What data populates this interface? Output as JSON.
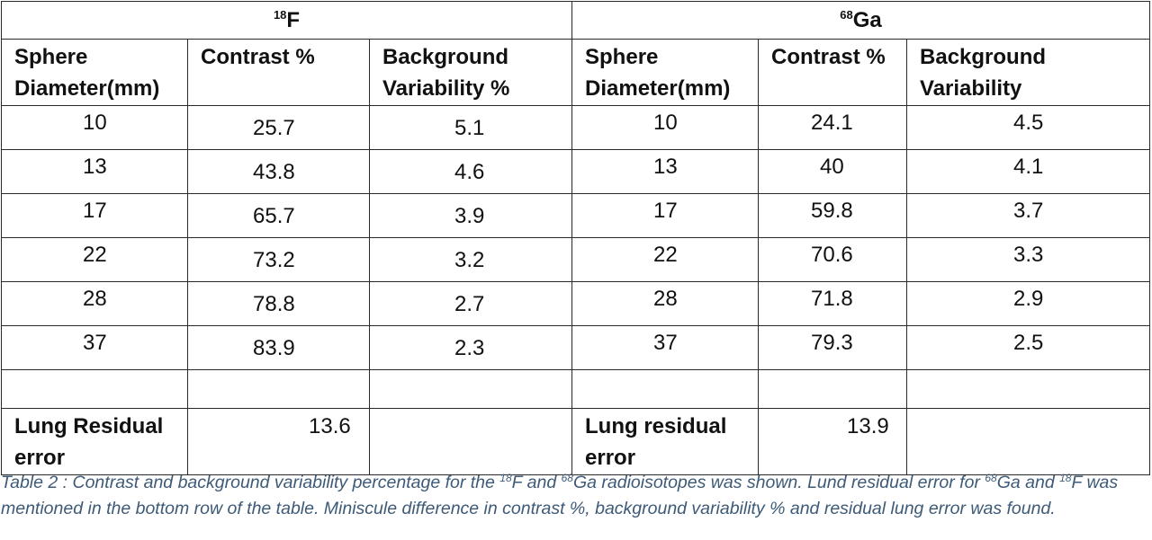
{
  "groups": {
    "f18": {
      "mass": "18",
      "symbol": "F"
    },
    "ga68": {
      "mass": "68",
      "symbol": "Ga"
    }
  },
  "headers": {
    "f18": {
      "diameter": "Sphere Diameter(mm)",
      "contrast": "Contrast %",
      "bv": "Background Variability %"
    },
    "ga68": {
      "diameter": "Sphere Diameter(mm)",
      "contrast": "Contrast %",
      "bv": "Background Variability"
    }
  },
  "rows": [
    {
      "f_d": "10",
      "f_c": "25.7",
      "f_bv": "5.1",
      "g_d": "10",
      "g_c": "24.1",
      "g_bv": "4.5"
    },
    {
      "f_d": "13",
      "f_c": "43.8",
      "f_bv": "4.6",
      "g_d": "13",
      "g_c": "40",
      "g_bv": "4.1"
    },
    {
      "f_d": "17",
      "f_c": "65.7",
      "f_bv": "3.9",
      "g_d": "17",
      "g_c": "59.8",
      "g_bv": "3.7"
    },
    {
      "f_d": "22",
      "f_c": "73.2",
      "f_bv": "3.2",
      "g_d": "22",
      "g_c": "70.6",
      "g_bv": "3.3"
    },
    {
      "f_d": "28",
      "f_c": "78.8",
      "f_bv": "2.7",
      "g_d": "28",
      "g_c": "71.8",
      "g_bv": "2.9"
    },
    {
      "f_d": "37",
      "f_c": "83.9",
      "f_bv": "2.3",
      "g_d": "37",
      "g_c": "79.3",
      "g_bv": "2.5"
    }
  ],
  "lung": {
    "f18": {
      "label": "Lung Residual error",
      "value": "13.6"
    },
    "ga68": {
      "label": "Lung residual error",
      "value": "13.9"
    }
  },
  "caption": {
    "p1": "Table 2 : Contrast and background variability percentage for the ",
    "m1": "18",
    "p2": "F and ",
    "m2": "68",
    "p3": "Ga radioisotopes was shown. Lund residual error for ",
    "m3": "68",
    "p4": "Ga and ",
    "m4": "18",
    "p5": "F was mentioned in the bottom row of the table. Miniscule difference in contrast %, background variability % and residual lung error was found."
  }
}
